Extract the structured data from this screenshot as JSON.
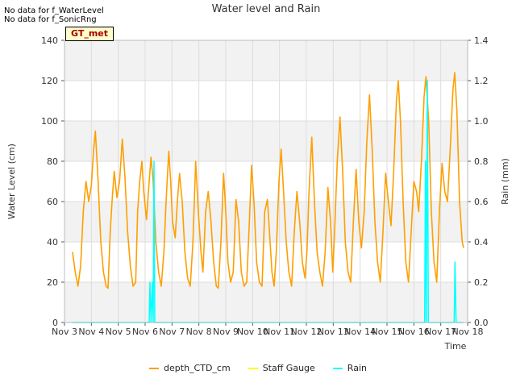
{
  "notes": [
    "No data for f_WaterLevel",
    "No data for f_SonicRng"
  ],
  "badge": "GT_met",
  "chart_data": {
    "type": "line",
    "title": "Water level and Rain",
    "xlabel": "Time",
    "ylabel": "Water Level (cm)",
    "y2label": "Rain (mm)",
    "xlim": [
      3,
      18
    ],
    "ylim": [
      0,
      140
    ],
    "y2lim": [
      0,
      1.4
    ],
    "x_ticks": [
      {
        "v": 3,
        "label": "Nov 3"
      },
      {
        "v": 4,
        "label": "Nov 4"
      },
      {
        "v": 5,
        "label": "Nov 5"
      },
      {
        "v": 6,
        "label": "Nov 6"
      },
      {
        "v": 7,
        "label": "Nov 7"
      },
      {
        "v": 8,
        "label": "Nov 8"
      },
      {
        "v": 9,
        "label": "Nov 9"
      },
      {
        "v": 10,
        "label": "Nov 10"
      },
      {
        "v": 11,
        "label": "Nov 11"
      },
      {
        "v": 12,
        "label": "Nov 12"
      },
      {
        "v": 13,
        "label": "Nov 13"
      },
      {
        "v": 14,
        "label": "Nov 14"
      },
      {
        "v": 15,
        "label": "Nov 15"
      },
      {
        "v": 16,
        "label": "Nov 16"
      },
      {
        "v": 17,
        "label": "Nov 17"
      },
      {
        "v": 18,
        "label": "Nov 18"
      }
    ],
    "y_ticks": [
      0,
      20,
      40,
      60,
      80,
      100,
      120,
      140
    ],
    "y2_ticks": [
      0.0,
      0.2,
      0.4,
      0.6,
      0.8,
      1.0,
      1.2,
      1.4
    ],
    "y2_tick_labels": [
      "0.0",
      "0.2",
      "0.4",
      "0.6",
      "0.8",
      "1.0",
      "1.2",
      "1.4"
    ],
    "series": [
      {
        "name": "depth_CTD_cm",
        "color": "#ff9f00",
        "points": [
          [
            3.3,
            35
          ],
          [
            3.4,
            25
          ],
          [
            3.5,
            18
          ],
          [
            3.6,
            28
          ],
          [
            3.7,
            55
          ],
          [
            3.8,
            70
          ],
          [
            3.9,
            60
          ],
          [
            4.0,
            68
          ],
          [
            4.08,
            85
          ],
          [
            4.15,
            95
          ],
          [
            4.25,
            70
          ],
          [
            4.35,
            40
          ],
          [
            4.45,
            25
          ],
          [
            4.55,
            18
          ],
          [
            4.62,
            17
          ],
          [
            4.7,
            45
          ],
          [
            4.78,
            62
          ],
          [
            4.85,
            75
          ],
          [
            4.95,
            62
          ],
          [
            5.05,
            70
          ],
          [
            5.15,
            91
          ],
          [
            5.25,
            72
          ],
          [
            5.35,
            45
          ],
          [
            5.45,
            28
          ],
          [
            5.55,
            18
          ],
          [
            5.65,
            20
          ],
          [
            5.72,
            55
          ],
          [
            5.8,
            70
          ],
          [
            5.88,
            80
          ],
          [
            5.95,
            65
          ],
          [
            6.05,
            51
          ],
          [
            6.15,
            70
          ],
          [
            6.22,
            82
          ],
          [
            6.3,
            70
          ],
          [
            6.4,
            40
          ],
          [
            6.5,
            25
          ],
          [
            6.6,
            18
          ],
          [
            6.7,
            35
          ],
          [
            6.78,
            60
          ],
          [
            6.88,
            85
          ],
          [
            6.95,
            70
          ],
          [
            7.02,
            50
          ],
          [
            7.12,
            42
          ],
          [
            7.2,
            60
          ],
          [
            7.28,
            74
          ],
          [
            7.38,
            60
          ],
          [
            7.48,
            35
          ],
          [
            7.58,
            22
          ],
          [
            7.68,
            18
          ],
          [
            7.78,
            40
          ],
          [
            7.88,
            80
          ],
          [
            7.98,
            55
          ],
          [
            8.08,
            35
          ],
          [
            8.15,
            25
          ],
          [
            8.25,
            55
          ],
          [
            8.35,
            65
          ],
          [
            8.45,
            50
          ],
          [
            8.55,
            30
          ],
          [
            8.65,
            18
          ],
          [
            8.72,
            17
          ],
          [
            8.82,
            40
          ],
          [
            8.92,
            74
          ],
          [
            9.0,
            55
          ],
          [
            9.08,
            30
          ],
          [
            9.18,
            20
          ],
          [
            9.28,
            25
          ],
          [
            9.38,
            61
          ],
          [
            9.48,
            50
          ],
          [
            9.58,
            25
          ],
          [
            9.68,
            18
          ],
          [
            9.78,
            20
          ],
          [
            9.88,
            50
          ],
          [
            9.96,
            78
          ],
          [
            10.05,
            60
          ],
          [
            10.15,
            30
          ],
          [
            10.25,
            20
          ],
          [
            10.35,
            18
          ],
          [
            10.45,
            55
          ],
          [
            10.55,
            61
          ],
          [
            10.65,
            40
          ],
          [
            10.72,
            25
          ],
          [
            10.8,
            18
          ],
          [
            10.88,
            35
          ],
          [
            10.98,
            70
          ],
          [
            11.06,
            86
          ],
          [
            11.15,
            65
          ],
          [
            11.25,
            40
          ],
          [
            11.35,
            25
          ],
          [
            11.45,
            18
          ],
          [
            11.55,
            45
          ],
          [
            11.65,
            65
          ],
          [
            11.75,
            50
          ],
          [
            11.85,
            30
          ],
          [
            11.95,
            22
          ],
          [
            12.02,
            35
          ],
          [
            12.1,
            65
          ],
          [
            12.2,
            92
          ],
          [
            12.3,
            60
          ],
          [
            12.4,
            35
          ],
          [
            12.5,
            25
          ],
          [
            12.6,
            18
          ],
          [
            12.7,
            35
          ],
          [
            12.8,
            67
          ],
          [
            12.9,
            50
          ],
          [
            12.98,
            25
          ],
          [
            13.05,
            45
          ],
          [
            13.15,
            80
          ],
          [
            13.25,
            102
          ],
          [
            13.35,
            75
          ],
          [
            13.45,
            40
          ],
          [
            13.55,
            25
          ],
          [
            13.65,
            20
          ],
          [
            13.75,
            50
          ],
          [
            13.85,
            76
          ],
          [
            13.95,
            50
          ],
          [
            14.05,
            37
          ],
          [
            14.15,
            55
          ],
          [
            14.25,
            90
          ],
          [
            14.35,
            113
          ],
          [
            14.45,
            85
          ],
          [
            14.55,
            50
          ],
          [
            14.65,
            30
          ],
          [
            14.75,
            20
          ],
          [
            14.85,
            45
          ],
          [
            14.95,
            74
          ],
          [
            15.05,
            60
          ],
          [
            15.15,
            48
          ],
          [
            15.25,
            75
          ],
          [
            15.35,
            110
          ],
          [
            15.42,
            120
          ],
          [
            15.5,
            100
          ],
          [
            15.6,
            60
          ],
          [
            15.7,
            30
          ],
          [
            15.8,
            20
          ],
          [
            15.9,
            45
          ],
          [
            16.0,
            70
          ],
          [
            16.1,
            65
          ],
          [
            16.18,
            55
          ],
          [
            16.28,
            80
          ],
          [
            16.38,
            112
          ],
          [
            16.45,
            122
          ],
          [
            16.55,
            100
          ],
          [
            16.65,
            55
          ],
          [
            16.75,
            30
          ],
          [
            16.85,
            20
          ],
          [
            16.95,
            55
          ],
          [
            17.05,
            79
          ],
          [
            17.15,
            65
          ],
          [
            17.25,
            60
          ],
          [
            17.35,
            85
          ],
          [
            17.45,
            115
          ],
          [
            17.52,
            124
          ],
          [
            17.6,
            105
          ],
          [
            17.7,
            60
          ],
          [
            17.8,
            40
          ],
          [
            17.85,
            37
          ]
        ]
      },
      {
        "name": "Staff Gauge",
        "color": "#ffff00",
        "points": []
      },
      {
        "name": "Rain",
        "color": "#00ffff",
        "axis": "right",
        "points": [
          [
            3.3,
            0
          ],
          [
            6.15,
            0
          ],
          [
            6.18,
            0.2
          ],
          [
            6.22,
            0
          ],
          [
            6.27,
            0.2
          ],
          [
            6.3,
            0
          ],
          [
            6.33,
            0.8
          ],
          [
            6.36,
            0
          ],
          [
            16.4,
            0
          ],
          [
            16.43,
            0.8
          ],
          [
            16.46,
            0
          ],
          [
            16.5,
            1.2
          ],
          [
            16.54,
            0
          ],
          [
            17.5,
            0
          ],
          [
            17.53,
            0.3
          ],
          [
            17.57,
            0
          ],
          [
            17.85,
            0
          ]
        ]
      }
    ]
  }
}
